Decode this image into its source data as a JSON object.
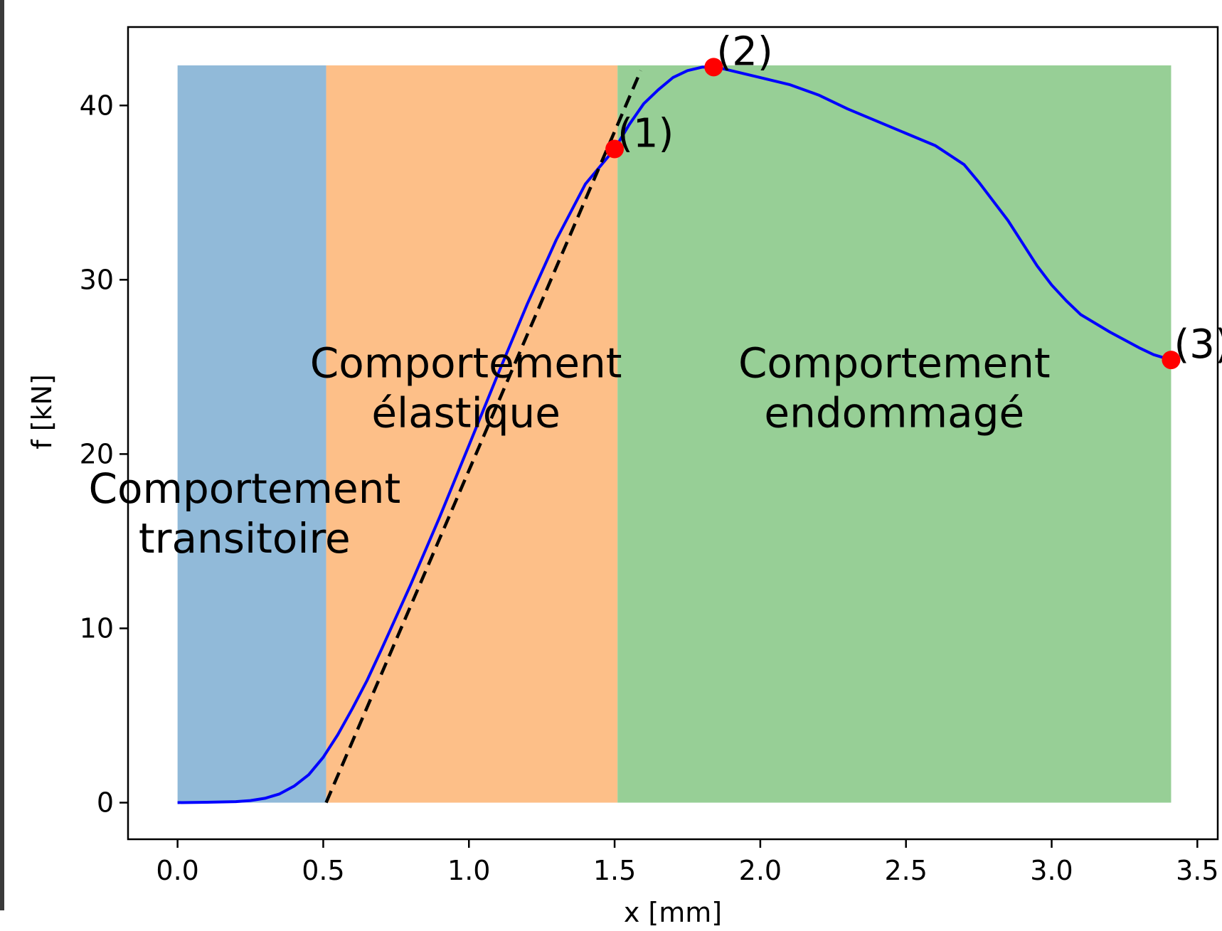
{
  "chart_data": {
    "type": "line",
    "title": "",
    "xlabel": "x [mm]",
    "ylabel": "f [kN]",
    "xlim": [
      -0.17,
      3.57
    ],
    "ylim": [
      -2.1,
      44.5
    ],
    "xticks": [
      0.0,
      0.5,
      1.0,
      1.5,
      2.0,
      2.5,
      3.0,
      3.5
    ],
    "xtick_labels": [
      "0.0",
      "0.5",
      "1.0",
      "1.5",
      "2.0",
      "2.5",
      "3.0",
      "3.5"
    ],
    "yticks": [
      0,
      10,
      20,
      30,
      40
    ],
    "ytick_labels": [
      "0",
      "10",
      "20",
      "30",
      "40"
    ],
    "grid": false,
    "regions": [
      {
        "x0": 0.0,
        "x1": 0.51,
        "y0": 0,
        "y1": 42.3,
        "color": "#91bad9",
        "label": [
          "Comportement",
          "transitoire"
        ],
        "label_x": 0.23,
        "label_y": 17.2
      },
      {
        "x0": 0.51,
        "x1": 1.51,
        "y0": 0,
        "y1": 42.3,
        "color": "#fdbf88",
        "label": [
          "Comportement",
          "élastique"
        ],
        "label_x": 0.99,
        "label_y": 24.4
      },
      {
        "x0": 1.51,
        "x1": 3.41,
        "y0": 0,
        "y1": 42.3,
        "color": "#97cf96",
        "label": [
          "Comportement",
          "endommagé"
        ],
        "label_x": 2.46,
        "label_y": 24.4
      }
    ],
    "series": [
      {
        "color": "#0000ff",
        "x": [
          0.0,
          0.1,
          0.2,
          0.25,
          0.3,
          0.35,
          0.4,
          0.45,
          0.5,
          0.55,
          0.6,
          0.65,
          0.7,
          0.8,
          0.9,
          1.0,
          1.1,
          1.2,
          1.3,
          1.4,
          1.5,
          1.55,
          1.6,
          1.65,
          1.7,
          1.75,
          1.8,
          1.85,
          1.9,
          2.0,
          2.1,
          2.2,
          2.3,
          2.4,
          2.5,
          2.6,
          2.7,
          2.75,
          2.8,
          2.85,
          2.9,
          2.95,
          3.0,
          3.05,
          3.1,
          3.2,
          3.3,
          3.35,
          3.41
        ],
        "y": [
          0.0,
          0.02,
          0.06,
          0.12,
          0.25,
          0.5,
          0.95,
          1.6,
          2.6,
          3.9,
          5.4,
          7.0,
          8.8,
          12.5,
          16.4,
          20.5,
          24.6,
          28.6,
          32.3,
          35.5,
          37.5,
          38.9,
          40.1,
          40.9,
          41.6,
          42.0,
          42.2,
          42.2,
          42.0,
          41.6,
          41.2,
          40.6,
          39.8,
          39.1,
          38.4,
          37.7,
          36.6,
          35.6,
          34.5,
          33.4,
          32.1,
          30.8,
          29.7,
          28.8,
          28.0,
          27.0,
          26.1,
          25.7,
          25.4
        ]
      },
      {
        "color": "#000000",
        "dashed": true,
        "x": [
          0.51,
          1.59
        ],
        "y": [
          0.0,
          42.0
        ]
      }
    ],
    "points": [
      {
        "x": 1.5,
        "y": 37.5,
        "label": "(1)",
        "color": "#ff0000"
      },
      {
        "x": 1.84,
        "y": 42.2,
        "label": "(2)",
        "color": "#ff0000"
      },
      {
        "x": 3.41,
        "y": 25.4,
        "label": "(3)",
        "color": "#ff0000"
      }
    ]
  }
}
